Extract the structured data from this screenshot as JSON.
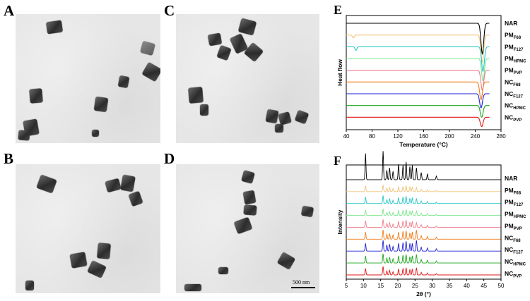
{
  "panels": {
    "A": {
      "letter": "A"
    },
    "B": {
      "letter": "B"
    },
    "C": {
      "letter": "C"
    },
    "D": {
      "letter": "D",
      "scale_bar": "500 nm"
    }
  },
  "chart_data": [
    {
      "panel": "E",
      "type": "line",
      "xlabel": "Temperature (°C)",
      "ylabel": "Heat flow",
      "xlim": [
        40,
        280
      ],
      "xticks": [
        40,
        80,
        120,
        160,
        200,
        240,
        280
      ],
      "grid": false,
      "series": [
        {
          "name": "NAR",
          "base": "NAR",
          "sub": "",
          "color": "#000000",
          "offset": 9,
          "peaks": [
            {
              "x": 251,
              "depth": 2.6,
              "width": 3.0
            }
          ]
        },
        {
          "name": "PMF68",
          "base": "PM",
          "sub": "F68",
          "color": "#f2c27a",
          "offset": 8,
          "peaks": [
            {
              "x": 51,
              "depth": 0.25,
              "width": 2
            },
            {
              "x": 251,
              "depth": 2.3,
              "width": 3.0
            }
          ]
        },
        {
          "name": "PMF127",
          "base": "PM",
          "sub": "F127",
          "color": "#26c6c6",
          "offset": 7,
          "peaks": [
            {
              "x": 55,
              "depth": 0.3,
              "width": 2
            },
            {
              "x": 252,
              "depth": 2.1,
              "width": 3.0
            }
          ]
        },
        {
          "name": "PMHPMC",
          "base": "PM",
          "sub": "HPMC",
          "color": "#7ae88a",
          "offset": 6,
          "peaks": [
            {
              "x": 252,
              "depth": 1.9,
              "width": 3.0
            }
          ]
        },
        {
          "name": "PMPVP",
          "base": "PM",
          "sub": "PVP",
          "color": "#f07a8a",
          "offset": 5,
          "peaks": [
            {
              "x": 251,
              "depth": 1.7,
              "width": 3.0
            }
          ]
        },
        {
          "name": "NCF68",
          "base": "NC",
          "sub": "F68",
          "color": "#f07a16",
          "offset": 4,
          "peaks": [
            {
              "x": 249,
              "depth": 1.5,
              "width": 3.0
            }
          ]
        },
        {
          "name": "NCF127",
          "base": "NC",
          "sub": "F127",
          "color": "#1f1fd6",
          "offset": 3,
          "peaks": [
            {
              "x": 249,
              "depth": 1.2,
              "width": 3.0
            }
          ]
        },
        {
          "name": "NCHPMC",
          "base": "NC",
          "sub": "HPMC",
          "color": "#1aa61a",
          "offset": 2,
          "peaks": [
            {
              "x": 250,
              "depth": 1.0,
              "width": 3.0
            }
          ]
        },
        {
          "name": "NCPVP",
          "base": "NC",
          "sub": "PVP",
          "color": "#e01616",
          "offset": 1,
          "peaks": [
            {
              "x": 250,
              "depth": 0.8,
              "width": 3.0
            }
          ]
        }
      ]
    },
    {
      "panel": "F",
      "type": "line",
      "xlabel": "2θ (°)",
      "ylabel": "Intensity",
      "xlim": [
        5,
        50
      ],
      "xticks": [
        5,
        10,
        15,
        20,
        25,
        30,
        35,
        40,
        45,
        50
      ],
      "grid": false,
      "peaks_2theta": [
        10.6,
        15.7,
        16.8,
        17.6,
        18.6,
        20.2,
        21.5,
        22.4,
        23.5,
        24.2,
        25.4,
        26.8,
        28.6,
        31.2
      ],
      "series": [
        {
          "name": "NAR",
          "base": "NAR",
          "sub": "",
          "color": "#000000",
          "offset": 9,
          "scale": 1.0,
          "intensities": [
            2.2,
            2.4,
            0.8,
            1.0,
            0.7,
            1.3,
            1.2,
            1.5,
            1.1,
            1.2,
            1.0,
            0.6,
            0.5,
            0.3
          ]
        },
        {
          "name": "PMF68",
          "base": "PM",
          "sub": "F68",
          "color": "#f2c27a",
          "offset": 8,
          "scale": 0.5,
          "intensities": [
            1.0,
            1.1,
            0.6,
            0.7,
            0.5,
            0.8,
            0.9,
            1.0,
            0.8,
            0.8,
            0.7,
            0.4,
            0.3,
            0.2
          ]
        },
        {
          "name": "PMF127",
          "base": "PM",
          "sub": "F127",
          "color": "#26c6c6",
          "offset": 7,
          "scale": 0.55,
          "intensities": [
            1.0,
            1.2,
            0.6,
            0.7,
            0.5,
            0.9,
            1.0,
            1.1,
            0.8,
            0.9,
            0.7,
            0.4,
            0.3,
            0.2
          ]
        },
        {
          "name": "PMHPMC",
          "base": "PM",
          "sub": "HPMC",
          "color": "#7ae88a",
          "offset": 6,
          "scale": 0.5,
          "intensities": [
            0.9,
            1.1,
            0.5,
            0.6,
            0.5,
            0.8,
            0.9,
            1.0,
            0.7,
            0.8,
            0.7,
            0.4,
            0.3,
            0.2
          ]
        },
        {
          "name": "PMPVP",
          "base": "PM",
          "sub": "PVP",
          "color": "#f07a8a",
          "offset": 5,
          "scale": 0.55,
          "intensities": [
            1.0,
            1.2,
            0.6,
            0.7,
            0.5,
            0.9,
            1.0,
            1.1,
            0.8,
            0.9,
            0.7,
            0.4,
            0.3,
            0.2
          ]
        },
        {
          "name": "NCF68",
          "base": "NC",
          "sub": "F68",
          "color": "#f07a16",
          "offset": 4,
          "scale": 0.6,
          "intensities": [
            1.0,
            1.3,
            0.7,
            0.8,
            0.6,
            1.0,
            1.1,
            1.2,
            0.9,
            1.0,
            1.3,
            0.5,
            0.4,
            0.3
          ]
        },
        {
          "name": "NCF127",
          "base": "NC",
          "sub": "F127",
          "color": "#1f1fd6",
          "offset": 3,
          "scale": 0.65,
          "intensities": [
            1.0,
            1.4,
            0.8,
            0.9,
            0.6,
            1.0,
            1.1,
            1.3,
            1.0,
            1.0,
            1.4,
            0.5,
            0.4,
            0.3
          ]
        },
        {
          "name": "NCHPMC",
          "base": "NC",
          "sub": "HPMC",
          "color": "#1aa61a",
          "offset": 2,
          "scale": 0.6,
          "intensities": [
            1.0,
            1.3,
            0.7,
            0.8,
            0.6,
            1.0,
            1.1,
            1.2,
            0.9,
            1.0,
            1.2,
            0.5,
            0.4,
            0.3
          ]
        },
        {
          "name": "NCPVP",
          "base": "NC",
          "sub": "PVP",
          "color": "#e01616",
          "offset": 1,
          "scale": 0.55,
          "intensities": [
            1.0,
            1.3,
            0.6,
            0.7,
            0.5,
            0.9,
            1.0,
            1.1,
            0.8,
            0.9,
            1.1,
            0.4,
            0.3,
            0.2
          ]
        }
      ]
    }
  ]
}
